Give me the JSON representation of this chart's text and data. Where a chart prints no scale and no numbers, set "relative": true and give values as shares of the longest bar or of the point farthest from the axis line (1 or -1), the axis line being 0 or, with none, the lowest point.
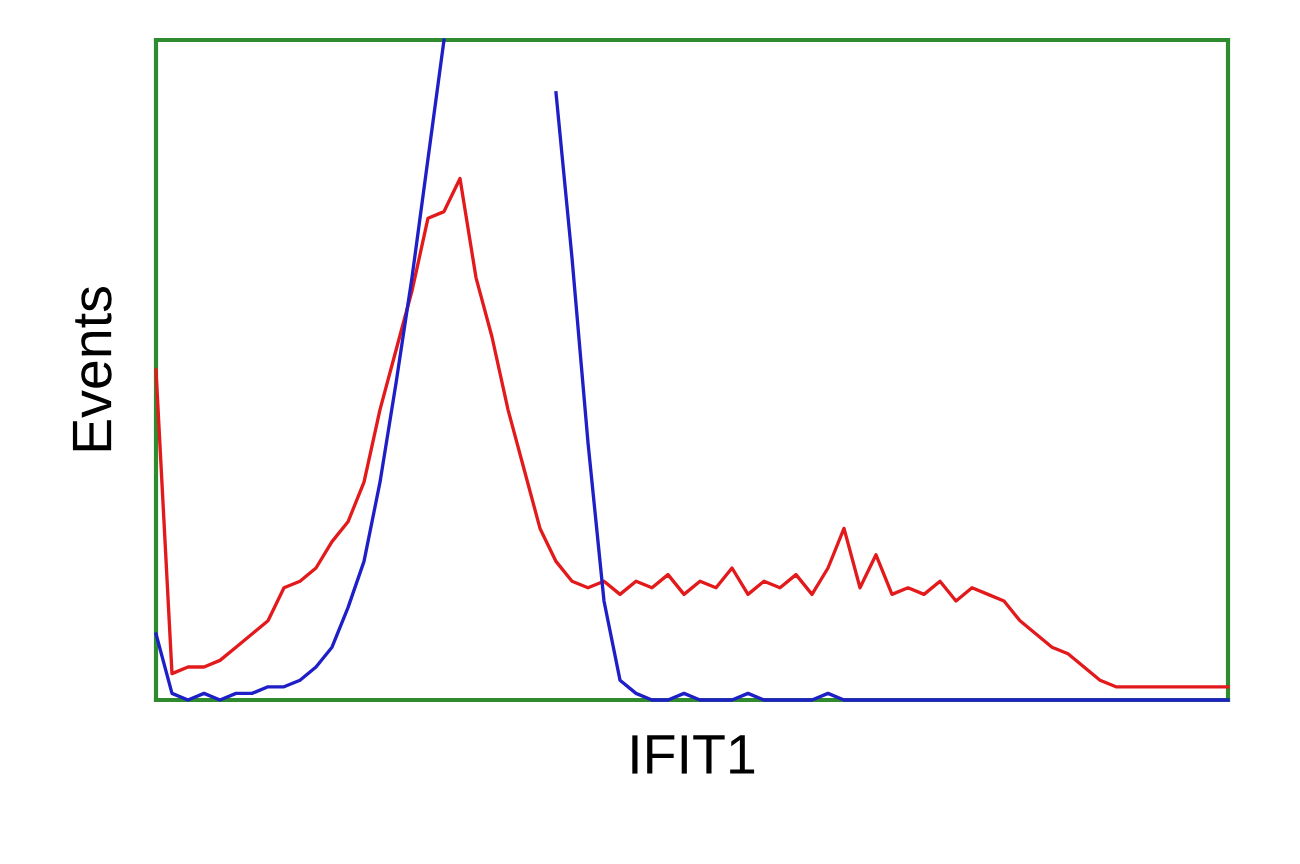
{
  "chart_data": {
    "type": "line",
    "relative": true,
    "xlabel": "IFIT1",
    "ylabel": "Events",
    "tick_labels": false,
    "categories": [
      null,
      null,
      null,
      null,
      null,
      null,
      null,
      null,
      null,
      null,
      null,
      null,
      null,
      null,
      null,
      null,
      null,
      null,
      null,
      null,
      null,
      null,
      null,
      null,
      null,
      null,
      null,
      null,
      null,
      null,
      null,
      null,
      null,
      null,
      null,
      null,
      null,
      null,
      null,
      null,
      null,
      null,
      null,
      null,
      null,
      null,
      null,
      null,
      null,
      null,
      null,
      null,
      null,
      null,
      null,
      null,
      null,
      null,
      null,
      null,
      null,
      null,
      null,
      null,
      null,
      null,
      null,
      null
    ],
    "series": [
      {
        "color": "#e31a1c",
        "values": [
          0.5,
          0.04,
          0.05,
          0.05,
          0.06,
          0.08,
          0.1,
          0.12,
          0.17,
          0.18,
          0.2,
          0.24,
          0.27,
          0.33,
          0.44,
          0.53,
          0.62,
          0.73,
          0.74,
          0.79,
          0.64,
          0.55,
          0.44,
          0.35,
          0.26,
          0.21,
          0.18,
          0.17,
          0.18,
          0.16,
          0.18,
          0.17,
          0.19,
          0.16,
          0.18,
          0.17,
          0.2,
          0.16,
          0.18,
          0.17,
          0.19,
          0.16,
          0.2,
          0.26,
          0.17,
          0.22,
          0.16,
          0.17,
          0.16,
          0.18,
          0.15,
          0.17,
          0.16,
          0.15,
          0.12,
          0.1,
          0.08,
          0.07,
          0.05,
          0.03,
          0.02,
          0.02,
          0.02,
          0.02,
          0.02,
          0.02,
          0.02,
          0.02
        ]
      },
      {
        "color": "#1f1fc8",
        "values": [
          0.1,
          0.01,
          0,
          0.01,
          0,
          0.01,
          0.01,
          0.02,
          0.02,
          0.03,
          0.05,
          0.08,
          0.14,
          0.21,
          0.33,
          0.48,
          0.64,
          0.82,
          1.0,
          null,
          null,
          null,
          null,
          null,
          null,
          0.92,
          0.67,
          0.39,
          0.15,
          0.03,
          0.01,
          0,
          0,
          0.01,
          0,
          0,
          0,
          0.01,
          0,
          0,
          0,
          0,
          0.01,
          0,
          0,
          0,
          0,
          0,
          0,
          0,
          0,
          0,
          0,
          0,
          0,
          0,
          0,
          0,
          0,
          0,
          0,
          0,
          0,
          0,
          0,
          0,
          0,
          0
        ]
      }
    ]
  }
}
